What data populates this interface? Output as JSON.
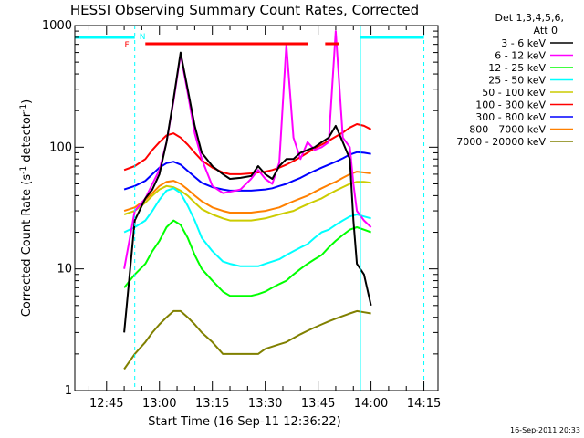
{
  "chart_data": {
    "type": "line",
    "title": "HESSI Observing Summary Count Rates, Corrected",
    "xlabel": "Start Time (16-Sep-11 12:36:22)",
    "ylabel": "Corrected Count Rate (s",
    "ylabel_sup": "-1",
    "ylabel_mid": " detector",
    "ylabel_end": ")",
    "ylog": true,
    "ylim": [
      1,
      1000
    ],
    "yticks": [
      {
        "v": 1,
        "label": "1"
      },
      {
        "v": 10,
        "label": "10"
      },
      {
        "v": 100,
        "label": "100"
      },
      {
        "v": 1000,
        "label": "1000"
      }
    ],
    "xlim": [
      36,
      139
    ],
    "xticks": [
      {
        "m": 45,
        "label": "12:45"
      },
      {
        "m": 60,
        "label": "13:00"
      },
      {
        "m": 75,
        "label": "13:15"
      },
      {
        "m": 90,
        "label": "13:30"
      },
      {
        "m": 105,
        "label": "13:45"
      },
      {
        "m": 120,
        "label": "14:00"
      },
      {
        "m": 135,
        "label": "14:15"
      }
    ],
    "legend": {
      "header1": "Det 1,3,4,5,6,",
      "header2": "Att 0",
      "placement": "right"
    },
    "series": [
      {
        "name": "3 - 6 keV",
        "color": "#000000",
        "t": [
          50,
          53,
          56,
          58,
          60,
          62,
          64,
          66,
          68,
          70,
          72,
          75,
          78,
          80,
          83,
          86,
          88,
          90,
          92,
          94,
          96,
          98,
          100,
          102,
          104,
          106,
          108,
          110,
          112,
          114,
          115,
          116,
          118,
          120
        ],
        "v": [
          3,
          25,
          38,
          45,
          60,
          110,
          250,
          600,
          300,
          150,
          90,
          70,
          60,
          55,
          56,
          58,
          70,
          60,
          55,
          70,
          80,
          80,
          90,
          95,
          100,
          110,
          120,
          150,
          110,
          80,
          25,
          11,
          9,
          5
        ]
      },
      {
        "name": "6 - 12 keV",
        "color": "#ff00ff",
        "t": [
          50,
          53,
          56,
          58,
          60,
          62,
          64,
          66,
          68,
          70,
          72,
          75,
          78,
          80,
          83,
          86,
          88,
          90,
          92,
          94,
          96,
          98,
          100,
          102,
          104,
          106,
          108,
          110,
          112,
          114,
          115,
          116,
          118,
          120
        ],
        "v": [
          10,
          30,
          38,
          50,
          65,
          110,
          240,
          580,
          280,
          130,
          80,
          48,
          42,
          43,
          45,
          55,
          65,
          55,
          50,
          75,
          700,
          120,
          80,
          110,
          95,
          100,
          110,
          900,
          120,
          100,
          50,
          30,
          25,
          22
        ]
      },
      {
        "name": "12 - 25 keV",
        "color": "#00ff00",
        "t": [
          50,
          53,
          56,
          58,
          60,
          62,
          64,
          66,
          68,
          70,
          72,
          75,
          78,
          80,
          83,
          86,
          88,
          90,
          92,
          94,
          96,
          98,
          100,
          102,
          104,
          106,
          108,
          110,
          112,
          114,
          116,
          118,
          120
        ],
        "v": [
          7,
          9,
          11,
          14,
          17,
          22,
          25,
          23,
          18,
          13,
          10,
          8,
          6.5,
          6,
          6,
          6,
          6.2,
          6.5,
          7,
          7.5,
          8,
          9,
          10,
          11,
          12,
          13,
          15,
          17,
          19,
          21,
          22,
          21,
          20
        ]
      },
      {
        "name": "25 - 50 keV",
        "color": "#00ffff",
        "t": [
          50,
          53,
          56,
          58,
          60,
          62,
          64,
          66,
          68,
          70,
          72,
          75,
          78,
          80,
          83,
          86,
          88,
          90,
          92,
          94,
          96,
          98,
          100,
          102,
          104,
          106,
          108,
          110,
          112,
          114,
          116,
          118,
          120
        ],
        "v": [
          20,
          22,
          25,
          30,
          37,
          44,
          46,
          42,
          33,
          25,
          18,
          14,
          11.5,
          11,
          10.5,
          10.5,
          10.5,
          11,
          11.5,
          12,
          13,
          14,
          15,
          16,
          18,
          20,
          21,
          23,
          25,
          27,
          28,
          27,
          26
        ]
      },
      {
        "name": "50 - 100 keV",
        "color": "#cccc00",
        "t": [
          50,
          53,
          56,
          58,
          60,
          62,
          64,
          66,
          68,
          70,
          72,
          75,
          78,
          80,
          83,
          86,
          88,
          90,
          92,
          94,
          96,
          98,
          100,
          102,
          104,
          106,
          108,
          110,
          112,
          114,
          116,
          118,
          120
        ],
        "v": [
          28,
          30,
          35,
          40,
          45,
          48,
          47,
          44,
          40,
          35,
          31,
          28,
          26,
          25,
          25,
          25,
          25.5,
          26,
          27,
          28,
          29,
          30,
          32,
          34,
          36,
          38,
          41,
          44,
          47,
          50,
          52,
          52,
          51
        ]
      },
      {
        "name": "100 - 300 keV",
        "color": "#ff0000",
        "t": [
          50,
          53,
          56,
          58,
          60,
          62,
          64,
          66,
          68,
          70,
          72,
          75,
          78,
          80,
          83,
          86,
          88,
          90,
          92,
          94,
          96,
          98,
          100,
          102,
          104,
          106,
          108,
          110,
          112,
          114,
          116,
          118,
          120
        ],
        "v": [
          65,
          70,
          80,
          95,
          110,
          125,
          130,
          120,
          105,
          90,
          78,
          68,
          62,
          60,
          60,
          61,
          62,
          63,
          65,
          68,
          72,
          77,
          83,
          90,
          98,
          105,
          113,
          122,
          132,
          145,
          155,
          150,
          140
        ]
      },
      {
        "name": "300 - 800 keV",
        "color": "#0000ff",
        "t": [
          50,
          53,
          56,
          58,
          60,
          62,
          64,
          66,
          68,
          70,
          72,
          75,
          78,
          80,
          83,
          86,
          88,
          90,
          92,
          94,
          96,
          98,
          100,
          102,
          104,
          106,
          108,
          110,
          112,
          114,
          116,
          118,
          120
        ],
        "v": [
          45,
          48,
          53,
          60,
          68,
          74,
          76,
          72,
          64,
          57,
          51,
          47,
          45,
          44,
          44,
          44,
          44.5,
          45,
          46,
          48,
          50,
          53,
          56,
          60,
          64,
          68,
          72,
          76,
          81,
          87,
          91,
          90,
          88
        ]
      },
      {
        "name": "800 - 7000 keV",
        "color": "#ff8000",
        "t": [
          50,
          53,
          56,
          58,
          60,
          62,
          64,
          66,
          68,
          70,
          72,
          75,
          78,
          80,
          83,
          86,
          88,
          90,
          92,
          94,
          96,
          98,
          100,
          102,
          104,
          106,
          108,
          110,
          112,
          114,
          116,
          118,
          120
        ],
        "v": [
          30,
          32,
          37,
          42,
          48,
          52,
          53,
          50,
          45,
          40,
          36,
          32,
          30,
          29,
          29,
          29,
          29.5,
          30,
          31,
          32,
          34,
          36,
          38,
          40,
          43,
          46,
          49,
          52,
          56,
          60,
          63,
          62,
          61
        ]
      },
      {
        "name": "7000 - 20000 keV",
        "color": "#808000",
        "t": [
          50,
          53,
          56,
          58,
          60,
          62,
          64,
          66,
          68,
          70,
          72,
          75,
          78,
          80,
          83,
          86,
          88,
          90,
          92,
          94,
          96,
          98,
          100,
          102,
          104,
          106,
          108,
          110,
          112,
          114,
          116,
          118,
          120
        ],
        "v": [
          1.5,
          2,
          2.5,
          3,
          3.5,
          4,
          4.5,
          4.5,
          4,
          3.5,
          3,
          2.5,
          2,
          2,
          2,
          2,
          2,
          2.2,
          2.3,
          2.4,
          2.5,
          2.7,
          2.9,
          3.1,
          3.3,
          3.5,
          3.7,
          3.9,
          4.1,
          4.3,
          4.5,
          4.4,
          4.3
        ]
      }
    ],
    "flags": {
      "night_bars": [
        {
          "t0": 36,
          "t1": 53
        },
        {
          "t0": 117,
          "t1": 135
        }
      ],
      "flare_bars": [
        {
          "t0": 56,
          "t1": 102
        },
        {
          "t0": 107,
          "t1": 111
        }
      ],
      "vlines": [
        {
          "t": 53,
          "dashed": true
        },
        {
          "t": 117,
          "dashed": false
        },
        {
          "t": 135,
          "dashed": true
        }
      ],
      "f_label": "F",
      "n_label": "N"
    },
    "grid": false
  },
  "footer": {
    "timestamp": "16-Sep-2011 20:33"
  }
}
